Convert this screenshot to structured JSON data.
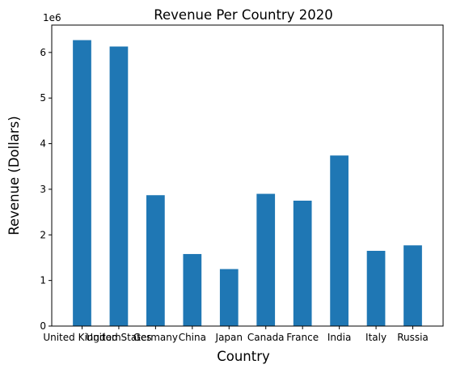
{
  "chart_data": {
    "type": "bar",
    "title": "Revenue Per Country 2020",
    "xlabel": "Country",
    "ylabel": "Revenue (Dollars)",
    "y_offset_label": "1e6",
    "categories": [
      "United Kingdom",
      "United States",
      "Germany",
      "China",
      "Japan",
      "Canada",
      "France",
      "India",
      "Italy",
      "Russia"
    ],
    "values": [
      6270000,
      6130000,
      2870000,
      1580000,
      1250000,
      2900000,
      2750000,
      3740000,
      1650000,
      1770000
    ],
    "ylim": [
      0,
      6600000
    ],
    "yticks": [
      0,
      1,
      2,
      3,
      4,
      5,
      6
    ],
    "grid": false,
    "legend": "none",
    "colors": {
      "bar": "#1f77b4",
      "axis": "#000000"
    }
  }
}
